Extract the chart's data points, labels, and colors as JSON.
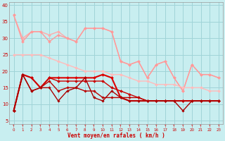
{
  "xlabel": "Vent moyen/en rafales ( km/h )",
  "xlim": [
    -0.5,
    23.5
  ],
  "ylim": [
    4,
    41
  ],
  "yticks": [
    5,
    10,
    15,
    20,
    25,
    30,
    35,
    40
  ],
  "xticks": [
    0,
    1,
    2,
    3,
    4,
    5,
    6,
    7,
    8,
    9,
    10,
    11,
    12,
    13,
    14,
    15,
    16,
    17,
    18,
    19,
    20,
    21,
    22,
    23
  ],
  "bg_color": "#c8eef0",
  "grid_color": "#a0d4d8",
  "lines": [
    {
      "y": [
        37,
        30,
        32,
        32,
        31,
        32,
        30,
        29,
        33,
        33,
        33,
        32,
        23,
        22,
        23,
        18,
        22,
        23,
        18,
        14,
        22,
        19,
        19,
        18
      ],
      "color": "#ffaaaa",
      "lw": 1.0,
      "marker": "D",
      "ms": 2.0
    },
    {
      "y": [
        37,
        29,
        32,
        32,
        29,
        31,
        30,
        29,
        33,
        33,
        33,
        32,
        23,
        22,
        23,
        18,
        22,
        23,
        18,
        14,
        22,
        19,
        19,
        18
      ],
      "color": "#ff9999",
      "lw": 1.0,
      "marker": "D",
      "ms": 2.0
    },
    {
      "y": [
        25,
        25,
        25,
        25,
        24,
        23,
        22,
        21,
        20,
        20,
        20,
        19,
        19,
        18,
        17,
        17,
        16,
        16,
        16,
        15,
        15,
        15,
        14,
        14
      ],
      "color": "#ffbbbb",
      "lw": 1.0,
      "marker": "D",
      "ms": 2.0
    },
    {
      "y": [
        8,
        19,
        18,
        15,
        18,
        18,
        18,
        18,
        18,
        18,
        19,
        18,
        12,
        11,
        11,
        11,
        11,
        11,
        11,
        11,
        11,
        11,
        11,
        11
      ],
      "color": "#dd0000",
      "lw": 1.5,
      "marker": "D",
      "ms": 2.0
    },
    {
      "y": [
        8,
        19,
        18,
        15,
        18,
        17,
        17,
        17,
        17,
        17,
        17,
        15,
        14,
        13,
        12,
        11,
        11,
        11,
        11,
        11,
        11,
        11,
        11,
        11
      ],
      "color": "#cc0000",
      "lw": 1.0,
      "marker": "D",
      "ms": 2.0
    },
    {
      "y": [
        8,
        19,
        14,
        15,
        17,
        14,
        15,
        15,
        14,
        14,
        12,
        12,
        12,
        12,
        12,
        11,
        11,
        11,
        11,
        11,
        11,
        11,
        11,
        11
      ],
      "color": "#bb0000",
      "lw": 1.0,
      "marker": "D",
      "ms": 1.8
    },
    {
      "y": [
        8,
        19,
        14,
        15,
        15,
        11,
        14,
        15,
        18,
        12,
        11,
        14,
        12,
        11,
        11,
        11,
        11,
        11,
        11,
        8,
        11,
        11,
        11,
        11
      ],
      "color": "#aa0000",
      "lw": 1.0,
      "marker": "D",
      "ms": 1.8
    }
  ]
}
